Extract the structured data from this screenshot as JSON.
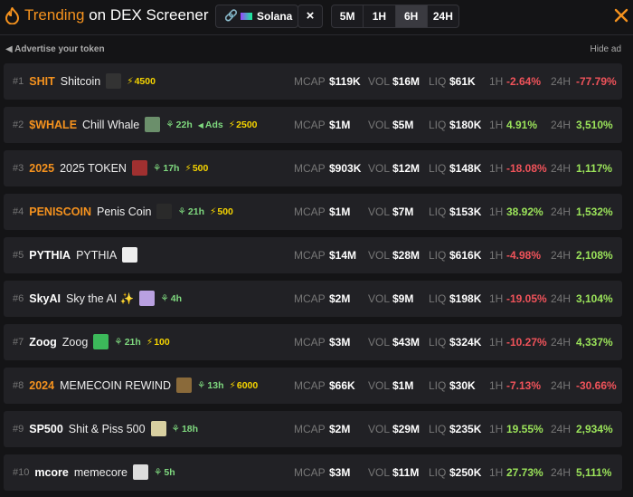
{
  "header": {
    "title_highlight": "Trending",
    "title_rest": "on DEX Screener",
    "chain": "Solana",
    "timeframes": [
      "5M",
      "1H",
      "6H",
      "24H"
    ],
    "active_timeframe": "6H"
  },
  "ad_bar": {
    "advertise": "Advertise your token",
    "hide": "Hide ad"
  },
  "labels": {
    "mcap": "MCAP",
    "vol": "VOL",
    "liq": "LIQ",
    "h1": "1H",
    "h24": "24H"
  },
  "rows": [
    {
      "rank": "#1",
      "symbol": "SHIT",
      "symbol_color": "orange",
      "name": "Shitcoin",
      "boost": "4500",
      "mcap": "$119K",
      "vol": "$16M",
      "liq": "$61K",
      "change_1h": "-2.64%",
      "change_24h": "-77.79%"
    },
    {
      "rank": "#2",
      "symbol": "$WHALE",
      "symbol_color": "orange",
      "name": "Chill Whale",
      "age": "22h",
      "ads": "Ads",
      "boost": "2500",
      "mcap": "$1M",
      "vol": "$5M",
      "liq": "$180K",
      "change_1h": "4.91%",
      "change_24h": "3,510%"
    },
    {
      "rank": "#3",
      "symbol": "2025",
      "symbol_color": "orange",
      "name": "2025 TOKEN",
      "age": "17h",
      "boost": "500",
      "mcap": "$903K",
      "vol": "$12M",
      "liq": "$148K",
      "change_1h": "-18.08%",
      "change_24h": "1,117%"
    },
    {
      "rank": "#4",
      "symbol": "PENISCOIN",
      "symbol_color": "orange",
      "name": "Penis Coin",
      "age": "21h",
      "boost": "500",
      "mcap": "$1M",
      "vol": "$7M",
      "liq": "$153K",
      "change_1h": "38.92%",
      "change_24h": "1,532%"
    },
    {
      "rank": "#5",
      "symbol": "PYTHIA",
      "symbol_color": "white",
      "name": "PYTHIA",
      "mcap": "$14M",
      "vol": "$28M",
      "liq": "$616K",
      "change_1h": "-4.98%",
      "change_24h": "2,108%"
    },
    {
      "rank": "#6",
      "symbol": "SkyAI",
      "symbol_color": "white",
      "name": "Sky the AI ✨",
      "age": "4h",
      "mcap": "$2M",
      "vol": "$9M",
      "liq": "$198K",
      "change_1h": "-19.05%",
      "change_24h": "3,104%"
    },
    {
      "rank": "#7",
      "symbol": "Zoog",
      "symbol_color": "white",
      "name": "Zoog",
      "age": "21h",
      "boost": "100",
      "mcap": "$3M",
      "vol": "$43M",
      "liq": "$324K",
      "change_1h": "-10.27%",
      "change_24h": "4,337%"
    },
    {
      "rank": "#8",
      "symbol": "2024",
      "symbol_color": "orange",
      "name": "MEMECOIN REWIND",
      "age": "13h",
      "boost": "6000",
      "mcap": "$66K",
      "vol": "$1M",
      "liq": "$30K",
      "change_1h": "-7.13%",
      "change_24h": "-30.66%"
    },
    {
      "rank": "#9",
      "symbol": "SP500",
      "symbol_color": "white",
      "name": "Shit & Piss 500",
      "age": "18h",
      "mcap": "$2M",
      "vol": "$29M",
      "liq": "$235K",
      "change_1h": "19.55%",
      "change_24h": "2,934%"
    },
    {
      "rank": "#10",
      "symbol": "mcore",
      "symbol_color": "white",
      "name": "memecore",
      "age": "5h",
      "mcap": "$3M",
      "vol": "$11M",
      "liq": "$250K",
      "change_1h": "27.73%",
      "change_24h": "5,111%"
    }
  ]
}
